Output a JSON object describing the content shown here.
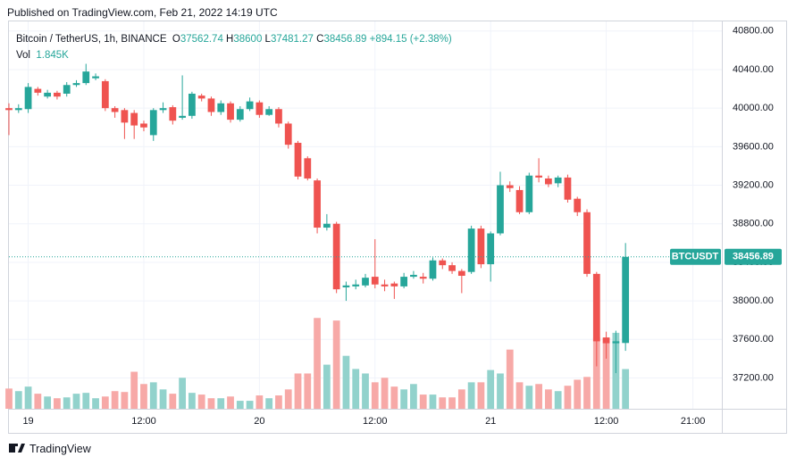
{
  "header": "Published on TradingView.com, Feb 21, 2022 14:19 UTC",
  "footer": "TradingView",
  "chart_data": {
    "type": "candlestick",
    "symbol": "Bitcoin / TetherUS, 1h, BINANCE",
    "legend_labels": {
      "open": "O",
      "high": "H",
      "low": "L",
      "close": "C"
    },
    "change_label": "+894.15 (+2.38%)",
    "volume_label": "Vol",
    "ticker": "BTCUSDT",
    "up_color": "#26a69a",
    "down_color": "#ef5350",
    "up_volume_color": "#92d2cc",
    "down_volume_color": "#f7a9a7",
    "open": [
      40000,
      39980,
      39990,
      40200,
      40120,
      40160,
      40150,
      40240,
      40260,
      40310,
      40280,
      40000,
      39980,
      39950,
      39840,
      39720,
      39980,
      40010,
      39900,
      39920,
      40130,
      40100,
      39960,
      40050,
      39880,
      39990,
      40060,
      39930,
      39990,
      39840,
      39640,
      39480,
      39250,
      38760,
      38800,
      38140,
      38150,
      38160,
      38250,
      38170,
      38180,
      38150,
      38250,
      38250,
      38230,
      38420,
      38370,
      38310,
      38300,
      38750,
      38380,
      38700,
      39200,
      39150,
      38920,
      39300,
      39270,
      39220,
      39280,
      39060,
      38920,
      38280,
      37620,
      37560,
      37562.74
    ],
    "high": [
      40050,
      40040,
      40260,
      40220,
      40190,
      40180,
      40270,
      40290,
      40460,
      40360,
      40300,
      40020,
      40000,
      39980,
      39870,
      40000,
      40060,
      40030,
      40340,
      40170,
      40150,
      40120,
      40080,
      40070,
      40020,
      40110,
      40080,
      40020,
      40010,
      39860,
      39660,
      39500,
      39270,
      38900,
      38820,
      38200,
      38220,
      38280,
      38640,
      38220,
      38200,
      38290,
      38310,
      38290,
      38450,
      38440,
      38400,
      38330,
      38780,
      38780,
      38720,
      39340,
      39240,
      39190,
      39330,
      39480,
      39300,
      39300,
      39310,
      39080,
      38950,
      38300,
      37680,
      37690,
      38600
    ],
    "low": [
      39720,
      39950,
      39950,
      40130,
      40100,
      40090,
      40120,
      40220,
      40240,
      40290,
      39970,
      39900,
      39680,
      39680,
      39760,
      39660,
      39950,
      39830,
      39880,
      39890,
      40070,
      39920,
      39930,
      39850,
      39860,
      39970,
      39900,
      39920,
      39800,
      39580,
      39260,
      39250,
      38700,
      38730,
      38080,
      38000,
      38120,
      38140,
      38130,
      38100,
      38020,
      38130,
      38230,
      38180,
      38210,
      38330,
      38280,
      38080,
      38280,
      38340,
      38200,
      38680,
      39130,
      38900,
      38900,
      39230,
      39180,
      39180,
      39020,
      38880,
      38250,
      37320,
      37400,
      37250,
      37481.27
    ],
    "close": [
      39980,
      40000,
      40220,
      40160,
      40160,
      40120,
      40240,
      40260,
      40380,
      40330,
      40000,
      39960,
      39850,
      39820,
      39800,
      39980,
      40000,
      39870,
      39920,
      40150,
      40100,
      39960,
      40050,
      39880,
      39990,
      40070,
      39930,
      39990,
      39840,
      39620,
      39290,
      39270,
      38760,
      38800,
      38120,
      38160,
      38170,
      38240,
      38170,
      38150,
      38150,
      38250,
      38270,
      38230,
      38420,
      38370,
      38310,
      38260,
      38750,
      38380,
      38700,
      39200,
      39170,
      38920,
      39300,
      39280,
      39210,
      39280,
      39050,
      38920,
      38280,
      37580,
      37560,
      37580,
      38456.89
    ],
    "volume": [
      940,
      820,
      1030,
      700,
      570,
      490,
      530,
      700,
      740,
      490,
      570,
      820,
      780,
      1720,
      1150,
      1230,
      900,
      700,
      1440,
      740,
      660,
      490,
      490,
      570,
      370,
      370,
      620,
      490,
      620,
      900,
      1640,
      1640,
      4220,
      2050,
      4100,
      2460,
      1850,
      1640,
      1230,
      1440,
      1030,
      900,
      1150,
      660,
      660,
      530,
      530,
      900,
      1230,
      1230,
      1800,
      1640,
      2750,
      1230,
      1070,
      1150,
      900,
      820,
      1070,
      1350,
      1480,
      3320,
      3280,
      3530,
      1845
    ],
    "volume_labels": {
      "64": "1.845K"
    },
    "volume_lim": [
      0,
      18000
    ],
    "xlim": [
      0,
      74
    ],
    "xticks": [
      {
        "value": 2,
        "label": "19"
      },
      {
        "value": 14,
        "label": "12:00"
      },
      {
        "value": 26,
        "label": "20"
      },
      {
        "value": 38,
        "label": "12:00"
      },
      {
        "value": 50,
        "label": "21"
      },
      {
        "value": 62,
        "label": "12:00"
      },
      {
        "value": 71,
        "label": "21:00"
      }
    ],
    "ylim": [
      36880,
      40900
    ],
    "yticks": [
      {
        "value": 37200,
        "label": "37200.00"
      },
      {
        "value": 37600,
        "label": "37600.00"
      },
      {
        "value": 38000,
        "label": "38000.00"
      },
      {
        "value": 38400,
        "label": "38400.00"
      },
      {
        "value": 38800,
        "label": "38800.00"
      },
      {
        "value": 39200,
        "label": "39200.00"
      },
      {
        "value": 39600,
        "label": "39600.00"
      },
      {
        "value": 40000,
        "label": "40000.00"
      },
      {
        "value": 40400,
        "label": "40400.00"
      },
      {
        "value": 40800,
        "label": "40800.00"
      }
    ],
    "grid": true
  }
}
